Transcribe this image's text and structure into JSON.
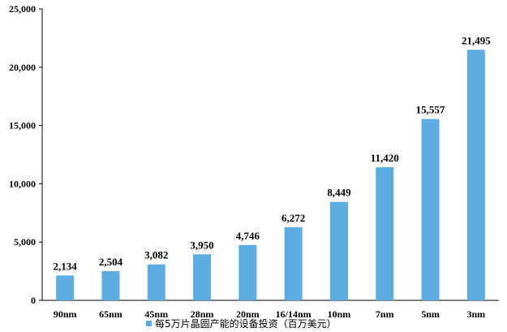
{
  "chart_data": {
    "type": "bar",
    "categories": [
      "90nm",
      "65nm",
      "45nm",
      "28nm",
      "20nm",
      "16/14nm",
      "10nm",
      "7nm",
      "5nm",
      "3nm"
    ],
    "series": [
      {
        "name": "每5万片晶圆产能的设备投资（百万美元）",
        "values": [
          2134,
          2504,
          3082,
          3950,
          4746,
          6272,
          8449,
          11420,
          15557,
          21495
        ],
        "labels": [
          "2,134",
          "2,504",
          "3,082",
          "3,950",
          "4,746",
          "6,272",
          "8,449",
          "11,420",
          "15,557",
          "21,495"
        ],
        "color": "#5dade2"
      }
    ],
    "yticks": [
      "0",
      "5,000",
      "10,000",
      "15,000",
      "20,000",
      "25,000"
    ],
    "ylim": [
      0,
      25000
    ],
    "grid": false,
    "legend": "bottom"
  }
}
